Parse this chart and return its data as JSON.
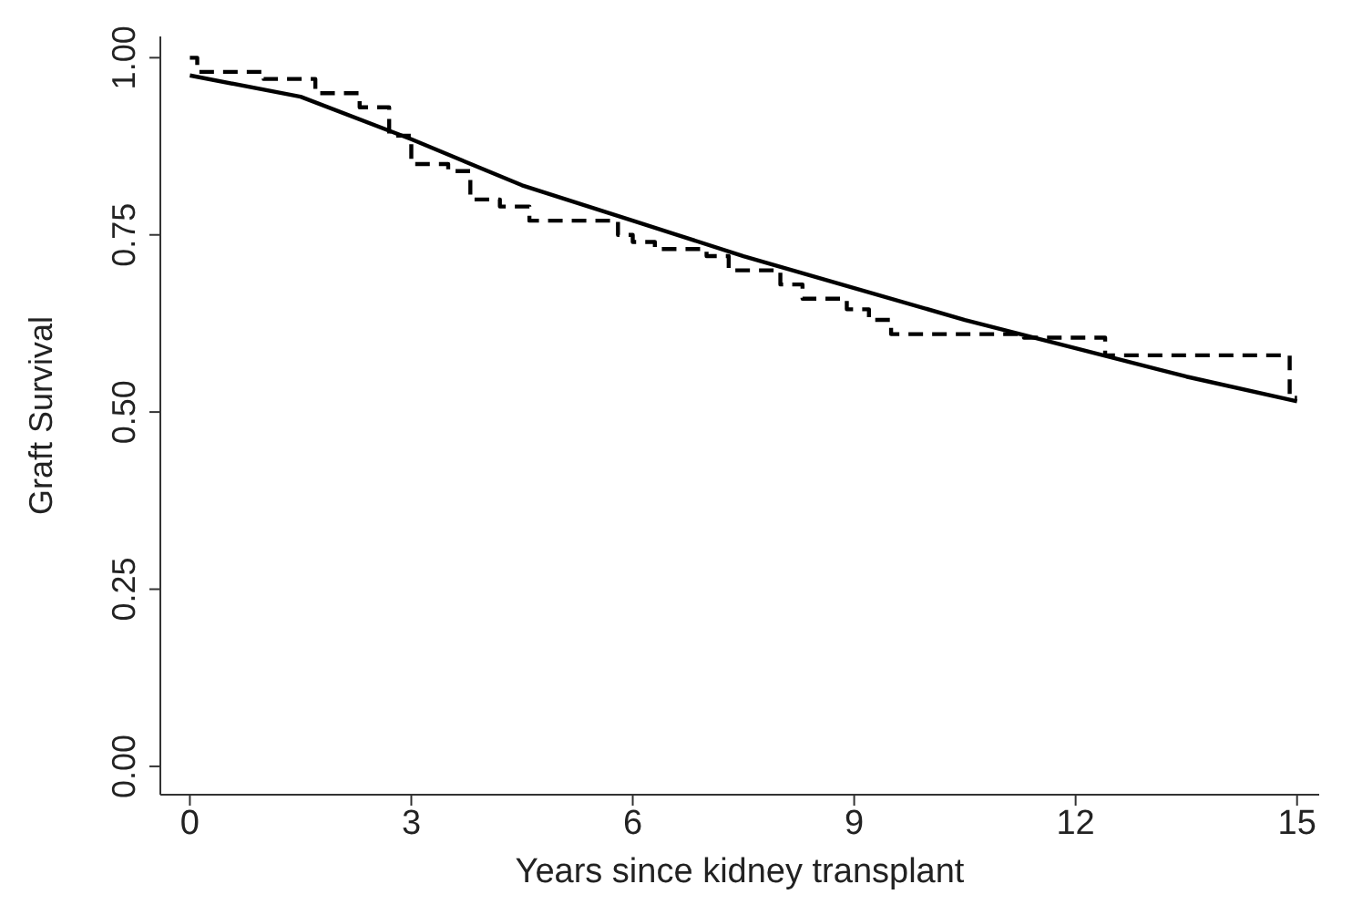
{
  "chart_data": {
    "type": "line",
    "xlabel": "Years since kidney transplant",
    "ylabel": "Graft Survival",
    "xlim": [
      -0.4,
      15.3
    ],
    "xticks": [
      0,
      3,
      6,
      9,
      12,
      15
    ],
    "ylim": [
      -0.04,
      1.03
    ],
    "yticks": [
      {
        "value": 0,
        "label": "0.00"
      },
      {
        "value": 0.25,
        "label": "0.25"
      },
      {
        "value": 0.5,
        "label": "0.50"
      },
      {
        "value": 0.75,
        "label": "0.75"
      },
      {
        "value": 1,
        "label": "1.00"
      }
    ],
    "marker": "none",
    "series": [
      {
        "color": "#000000",
        "line_style": "solid",
        "x": [
          0,
          1.5,
          3,
          4.5,
          6,
          7.5,
          9,
          10.5,
          12,
          13.5,
          15
        ],
        "values": [
          0.975,
          0.945,
          0.885,
          0.82,
          0.77,
          0.72,
          0.675,
          0.63,
          0.59,
          0.55,
          0.515
        ]
      },
      {
        "type": "step",
        "color": "#000000",
        "line_style": "dashed",
        "x": [
          0,
          0.1,
          1,
          1.7,
          2.3,
          2.7,
          3,
          3.5,
          3.8,
          4.2,
          4.6,
          5.8,
          6,
          6.3,
          7,
          7.3,
          8,
          8.3,
          8.9,
          9.2,
          9.5,
          11.3,
          12.4,
          14.9,
          15
        ],
        "values": [
          1.0,
          0.98,
          0.97,
          0.95,
          0.93,
          0.89,
          0.85,
          0.84,
          0.8,
          0.79,
          0.77,
          0.75,
          0.74,
          0.73,
          0.72,
          0.7,
          0.68,
          0.66,
          0.645,
          0.63,
          0.61,
          0.605,
          0.58,
          0.52,
          0.52
        ]
      }
    ]
  }
}
